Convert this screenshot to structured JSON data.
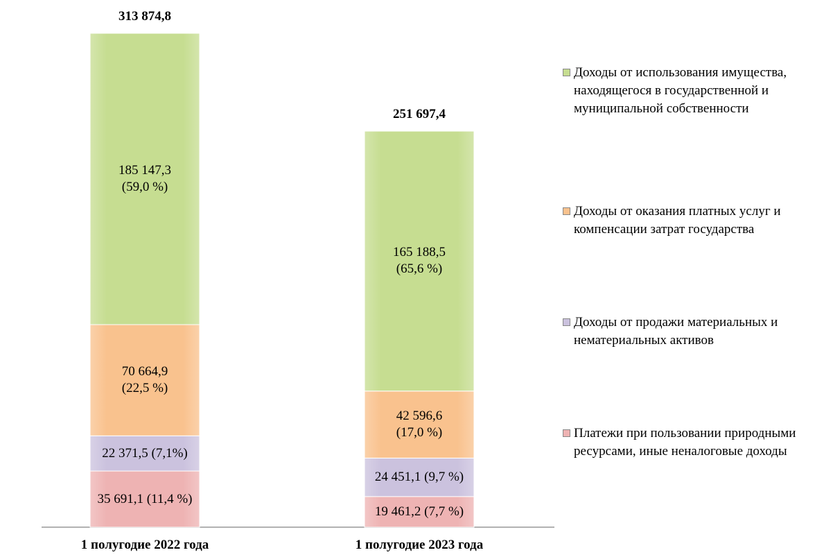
{
  "chart_data": {
    "type": "stacked_bar",
    "categories": [
      "1 полугодие 2022 года",
      "1 полугодие 2023 года"
    ],
    "series": [
      {
        "name": "Платежи при пользовании природными ресурсами, иные неналоговые доходы",
        "color": "#eeb3b3",
        "values": [
          35691.1,
          19461.2
        ],
        "value_labels": [
          "35 691,1 (11,4 %)",
          "19 461,2 (7,7 %)"
        ]
      },
      {
        "name": "Доходы от продажи материальных и нематериальных активов",
        "color": "#cbc2de",
        "values": [
          22371.5,
          24451.1
        ],
        "value_labels": [
          "22 371,5 (7,1%)",
          "24 451,1 (9,7 %)"
        ]
      },
      {
        "name": "Доходы от оказания платных услуг и компенсации затрат государства",
        "color": "#f9c28e",
        "values": [
          70664.9,
          42596.6
        ],
        "value_labels": [
          "70 664,9\n(22,5 %)",
          "42 596,6\n(17,0 %)"
        ]
      },
      {
        "name": "Доходы от использования имущества, находящегося в государственной и муниципальной собственности",
        "color": "#c6dd91",
        "values": [
          185147.3,
          165188.5
        ],
        "value_labels": [
          "185 147,3\n(59,0 %)",
          "165 188,5\n(65,6 %)"
        ]
      }
    ],
    "totals": [
      313874.8,
      251697.4
    ],
    "total_labels": [
      "313 874,8",
      "251 697,4"
    ]
  }
}
